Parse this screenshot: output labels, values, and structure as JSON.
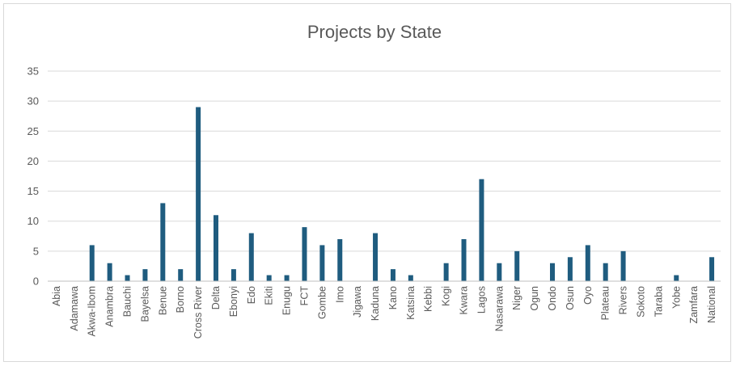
{
  "chart_data": {
    "type": "bar",
    "title": "Projects by State",
    "xlabel": "",
    "ylabel": "",
    "ylim": [
      0,
      35
    ],
    "yticks": [
      0,
      5,
      10,
      15,
      20,
      25,
      30,
      35
    ],
    "grid": true,
    "legend": "none",
    "bar_color": "#1f5c7f",
    "categories": [
      "Abia",
      "Adamawa",
      "Akwa-Ibom",
      "Anambra",
      "Bauchi",
      "Bayelsa",
      "Benue",
      "Borno",
      "Cross River",
      "Delta",
      "Ebonyi",
      "Edo",
      "Ekiti",
      "Enugu",
      "FCT",
      "Gombe",
      "Imo",
      "Jigawa",
      "Kaduna",
      "Kano",
      "Katsina",
      "Kebbi",
      "Kogi",
      "Kwara",
      "Lagos",
      "Nasarawa",
      "Niger",
      "Ogun",
      "Ondo",
      "Osun",
      "Oyo",
      "Plateau",
      "Rivers",
      "Sokoto",
      "Taraba",
      "Yobe",
      "Zamfara",
      "National"
    ],
    "values": [
      0,
      0,
      6,
      3,
      1,
      2,
      13,
      2,
      29,
      11,
      2,
      8,
      1,
      1,
      9,
      6,
      7,
      0,
      8,
      2,
      1,
      0,
      3,
      7,
      17,
      3,
      5,
      0,
      3,
      4,
      6,
      3,
      5,
      0,
      0,
      1,
      0,
      4
    ]
  }
}
